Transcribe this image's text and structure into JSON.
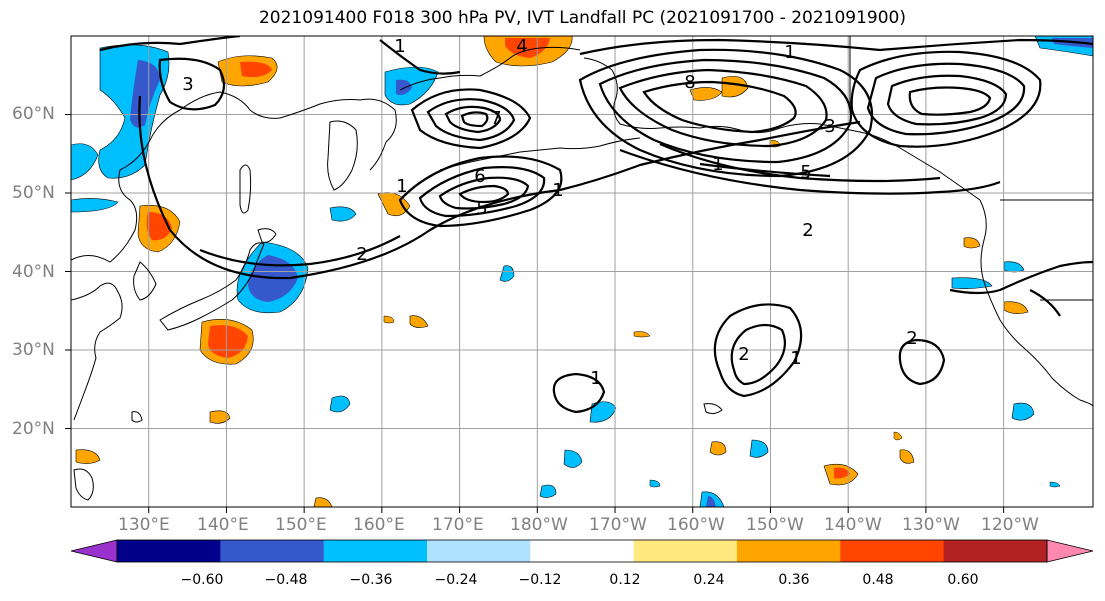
{
  "title": "2021091400 F018 300 hPa PV, IVT Landfall PC (2021091700 - 2021091900)",
  "map": {
    "projection": "PlateCarree",
    "extent_lon": [
      120,
      251.5
    ],
    "extent_lat": [
      10,
      70
    ],
    "lat_labels": [
      "60°N",
      "50°N",
      "40°N",
      "30°N",
      "20°N"
    ],
    "lon_labels": [
      "130°E",
      "140°E",
      "150°E",
      "160°E",
      "170°E",
      "180°W",
      "170°W",
      "160°W",
      "150°W",
      "140°W",
      "130°W",
      "120°W"
    ],
    "gridlines": true,
    "gridline_color": "#a0a0a0",
    "coastline_color": "#000000",
    "contour_color": "#000000",
    "contour_labels": [
      "3",
      "1",
      "4",
      "5",
      "2",
      "6",
      "7",
      "8",
      "3",
      "1",
      "2",
      "1",
      "1",
      "2",
      "1",
      "1",
      "2",
      "5",
      "1"
    ]
  },
  "colorbar": {
    "ticks": [
      "−0.60",
      "−0.48",
      "−0.36",
      "−0.24",
      "−0.12",
      "0.12",
      "0.24",
      "0.36",
      "0.48",
      "0.60"
    ],
    "colors": [
      "#9932cc",
      "#00008b",
      "#3558cc",
      "#00bfff",
      "#b0e2ff",
      "#ffffff",
      "#ffe97f",
      "#ffa500",
      "#ff4500",
      "#b22222",
      "#ff88b0"
    ],
    "extend": "both"
  }
}
